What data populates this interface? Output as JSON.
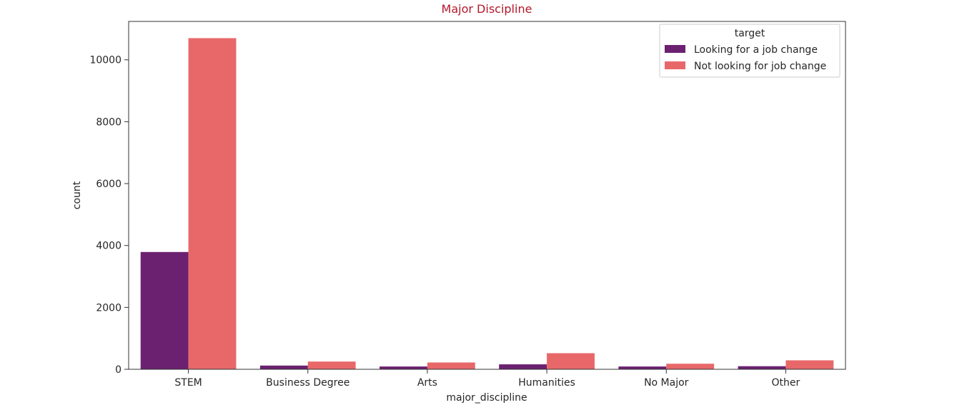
{
  "chart_data": {
    "type": "bar",
    "title": "Major Discipline",
    "title_color": "#b2182b",
    "xlabel": "major_discipline",
    "ylabel": "count",
    "categories": [
      "STEM",
      "Business Degree",
      "Arts",
      "Humanities",
      "No Major",
      "Other"
    ],
    "series": [
      {
        "name": "Looking for a job change",
        "color": "#6b2170",
        "values": [
          3790,
          120,
          90,
          160,
          90,
          100
        ]
      },
      {
        "name": "Not looking for job change",
        "color": "#e8686a",
        "values": [
          10700,
          250,
          220,
          520,
          180,
          290
        ]
      }
    ],
    "yticks": [
      0,
      2000,
      4000,
      6000,
      8000,
      10000
    ],
    "ylim": [
      0,
      11240
    ],
    "grid": false,
    "legend": {
      "title": "target",
      "placement": "top-right"
    }
  }
}
